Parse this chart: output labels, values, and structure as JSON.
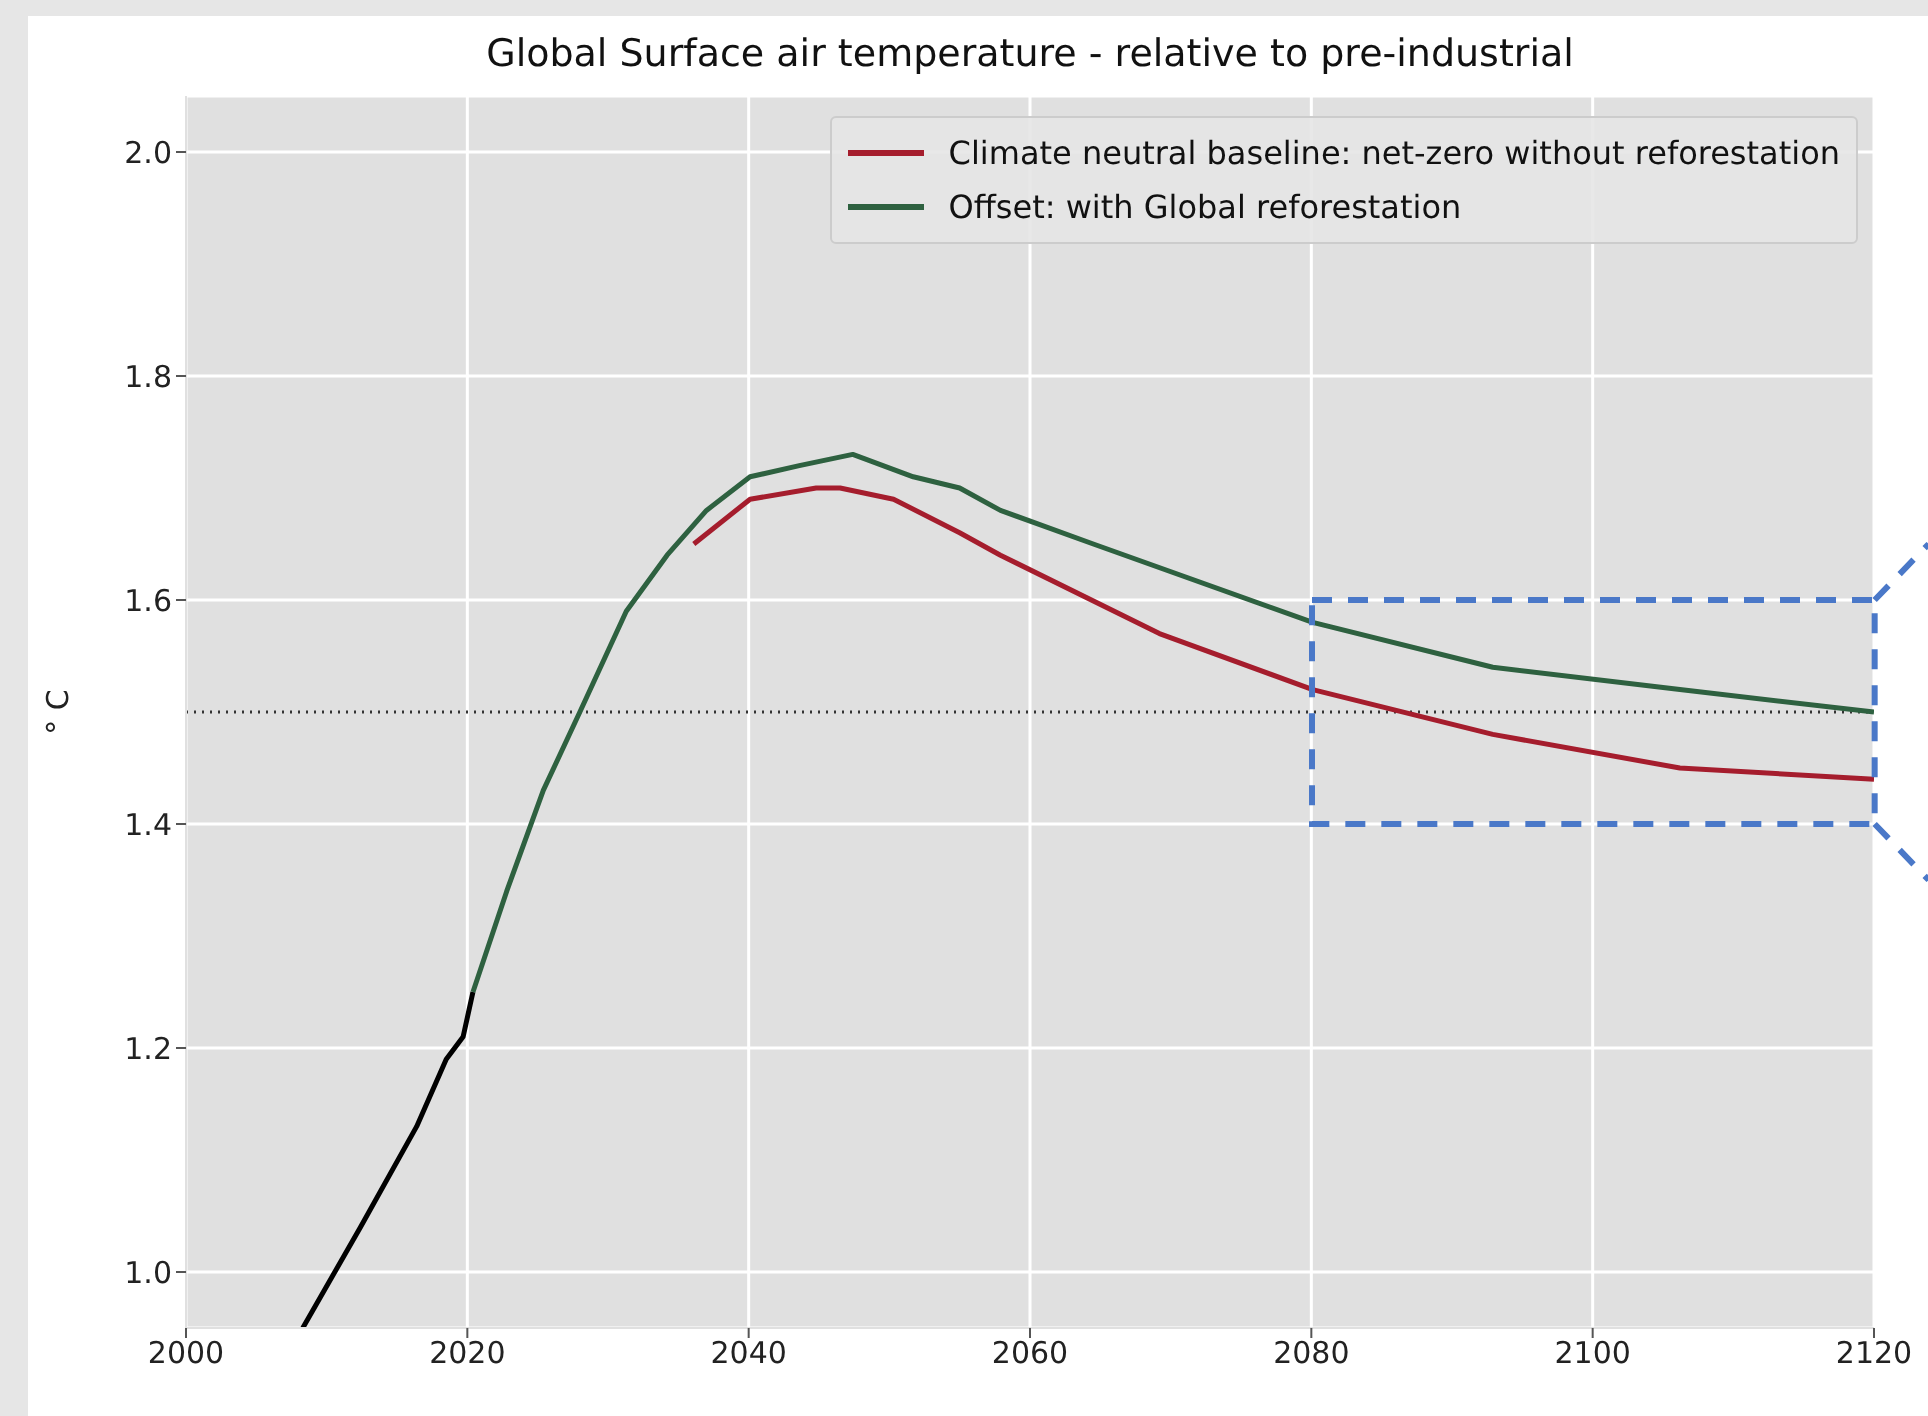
{
  "chart_data": {
    "type": "line",
    "title": "Global Surface air temperature - relative to pre-industrial",
    "ylabel": "° C",
    "xlim": [
      2000,
      2120
    ],
    "xticks": [
      2000,
      2020,
      2040,
      2060,
      2080,
      2100,
      2120
    ],
    "ylim": [
      0.95,
      2.05
    ],
    "yticks": [
      {
        "value": 1,
        "label": "1.0"
      },
      {
        "value": 1.2,
        "label": "1.2"
      },
      {
        "value": 1.4,
        "label": "1.4"
      },
      {
        "value": 1.6,
        "label": "1.6"
      },
      {
        "value": 1.8,
        "label": "1.8"
      },
      {
        "value": 2,
        "label": "2.0"
      }
    ],
    "grid": true,
    "legend": "top right",
    "marker": "none",
    "line_style": "solid",
    "ref_lines": [
      {
        "axis": "y",
        "value": 1.5,
        "color": "#333333",
        "line_style": "dotted"
      }
    ],
    "series": [
      {
        "color": "#000000",
        "x": [
          2008.3,
          2012.4,
          2016.4,
          2018.5,
          2019.7,
          2020.4
        ],
        "values": [
          0.95,
          1.04,
          1.13,
          1.19,
          1.21,
          1.25
        ]
      },
      {
        "name": "Climate neutral baseline: net-zero without reforestation",
        "color": "#a51d2d",
        "x": [
          2036.1,
          2040.1,
          2044.8,
          2046.5,
          2050.3,
          2055,
          2057.9,
          2069.2,
          2080.1,
          2092.9,
          2106.2,
          2120
        ],
        "values": [
          1.65,
          1.69,
          1.7,
          1.7,
          1.69,
          1.66,
          1.64,
          1.57,
          1.52,
          1.48,
          1.45,
          1.44
        ]
      },
      {
        "name": "Offset: with Global reforestation",
        "color": "#2e6140",
        "x": [
          2020.4,
          2022.8,
          2025.4,
          2028,
          2031.3,
          2034.2,
          2037,
          2040.1,
          2043.6,
          2047.4,
          2051.7,
          2055,
          2057.9,
          2064.5,
          2080.1,
          2092.9,
          2106.2,
          2120
        ],
        "values": [
          1.25,
          1.34,
          1.43,
          1.5,
          1.59,
          1.64,
          1.68,
          1.71,
          1.72,
          1.73,
          1.71,
          1.7,
          1.68,
          1.65,
          1.58,
          1.54,
          1.52,
          1.5
        ]
      }
    ]
  }
}
